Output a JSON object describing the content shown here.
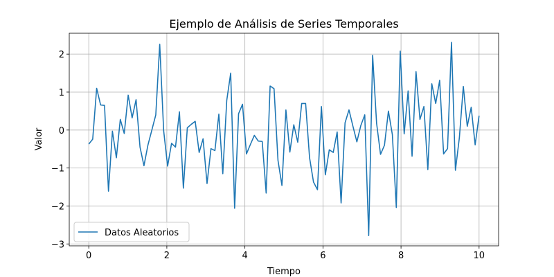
{
  "chart_data": {
    "type": "line",
    "title": "Ejemplo de Análisis de Series Temporales",
    "xlabel": "Tiempo",
    "ylabel": "Valor",
    "xlim": [
      -0.5,
      10.5
    ],
    "ylim": [
      -3.05,
      2.55
    ],
    "xticks": [
      0,
      2,
      4,
      6,
      8,
      10
    ],
    "xtick_labels": [
      "0",
      "2",
      "4",
      "6",
      "8",
      "10"
    ],
    "yticks": [
      -3,
      -2,
      -1,
      0,
      1,
      2
    ],
    "ytick_labels": [
      "−3",
      "−2",
      "−1",
      "0",
      "1",
      "2"
    ],
    "grid": true,
    "legend_position": "lower-left",
    "series": [
      {
        "name": "Datos Aleatorios",
        "color": "#1f77b4",
        "x": [
          0.0,
          0.101,
          0.202,
          0.303,
          0.404,
          0.505,
          0.606,
          0.707,
          0.808,
          0.909,
          1.01,
          1.111,
          1.212,
          1.313,
          1.414,
          1.515,
          1.616,
          1.717,
          1.818,
          1.919,
          2.02,
          2.121,
          2.222,
          2.323,
          2.424,
          2.525,
          2.626,
          2.727,
          2.828,
          2.929,
          3.03,
          3.131,
          3.232,
          3.333,
          3.434,
          3.535,
          3.636,
          3.737,
          3.838,
          3.939,
          4.04,
          4.141,
          4.242,
          4.343,
          4.444,
          4.545,
          4.646,
          4.747,
          4.848,
          4.949,
          5.051,
          5.152,
          5.253,
          5.354,
          5.455,
          5.556,
          5.657,
          5.758,
          5.859,
          5.96,
          6.061,
          6.162,
          6.263,
          6.364,
          6.465,
          6.566,
          6.667,
          6.768,
          6.869,
          6.97,
          7.071,
          7.172,
          7.273,
          7.374,
          7.475,
          7.576,
          7.677,
          7.778,
          7.879,
          7.98,
          8.081,
          8.182,
          8.283,
          8.384,
          8.485,
          8.586,
          8.687,
          8.788,
          8.889,
          8.99,
          9.091,
          9.192,
          9.293,
          9.394,
          9.495,
          9.596,
          9.697,
          9.798,
          9.899,
          10.0
        ],
        "y": [
          -0.37,
          -0.24,
          1.1,
          0.66,
          0.65,
          -1.61,
          -0.03,
          -0.73,
          0.28,
          -0.09,
          0.92,
          0.32,
          0.8,
          -0.45,
          -0.94,
          -0.4,
          0.0,
          0.4,
          2.26,
          -0.02,
          -0.95,
          -0.35,
          -0.45,
          0.48,
          -1.53,
          0.06,
          0.15,
          0.23,
          -0.59,
          -0.23,
          -1.41,
          -0.49,
          -0.54,
          0.42,
          -1.15,
          0.78,
          1.5,
          -2.06,
          0.43,
          0.68,
          -0.63,
          -0.38,
          -0.14,
          -0.29,
          -0.3,
          -1.66,
          1.16,
          1.09,
          -0.8,
          -1.46,
          0.53,
          -0.58,
          0.14,
          -0.32,
          0.7,
          0.7,
          -0.73,
          -1.37,
          -1.57,
          0.62,
          -1.18,
          -0.52,
          -0.59,
          -0.05,
          -1.92,
          0.19,
          0.53,
          0.1,
          -0.31,
          0.12,
          0.4,
          -2.78,
          1.97,
          0.18,
          -0.64,
          -0.4,
          0.5,
          -0.12,
          -2.04,
          2.08,
          -0.1,
          1.03,
          -0.69,
          1.54,
          0.28,
          0.62,
          -1.04,
          1.22,
          0.7,
          1.31,
          -0.63,
          -0.49,
          2.31,
          -1.06,
          -0.2,
          1.15,
          0.1,
          0.6,
          -0.39,
          0.38
        ]
      }
    ]
  }
}
